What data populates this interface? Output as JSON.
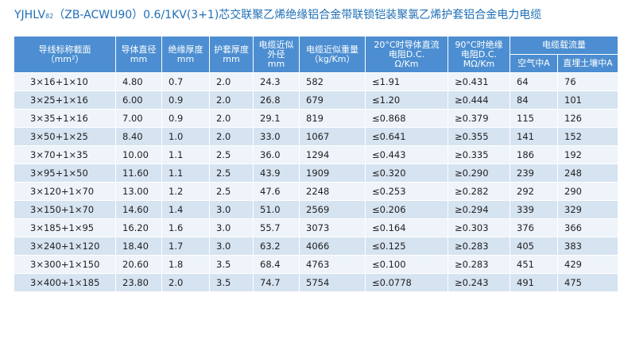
{
  "title": {
    "model": "YJHLV",
    "model_sub": "82",
    "rest": "（ZB-ACWU90）0.6/1KV(3+1)芯交联聚乙烯绝缘铝合金带联锁铠装聚氯乙烯护套铝合金电力电缆"
  },
  "headers": {
    "section": "导线标称截面\n（mm²）",
    "conductor_dia": "导体直径\nmm",
    "insulation": "绝缘厚度\nmm",
    "sheath": "护套厚度\nmm",
    "outer_dia": "电缆近似\n外径\nmm",
    "weight": "电缆近似重量\n（kg/Km）",
    "resistance_20": "20°C时导体直流\n电阻D.C.\nΩ/Km",
    "insulation_res_90": "90°C时绝缘\n电阻D.C.\nMΩ/Km",
    "ampacity": "电缆载流量",
    "ampacity_air": "空气中A",
    "ampacity_ground": "直埋土壤中A"
  },
  "rows": [
    [
      "3×16+1×10",
      "4.80",
      "0.7",
      "2.0",
      "24.3",
      "582",
      "≤1.91",
      "≥0.431",
      "64",
      "76"
    ],
    [
      "3×25+1×16",
      "6.00",
      "0.9",
      "2.0",
      "26.8",
      "679",
      "≤1.20",
      "≥0.444",
      "84",
      "101"
    ],
    [
      "3×35+1×16",
      "7.00",
      "0.9",
      "2.0",
      "29.1",
      "819",
      "≤0.868",
      "≥0.379",
      "115",
      "126"
    ],
    [
      "3×50+1×25",
      "8.40",
      "1.0",
      "2.0",
      "33.0",
      "1067",
      "≤0.641",
      "≥0.355",
      "141",
      "152"
    ],
    [
      "3×70+1×35",
      "10.00",
      "1.1",
      "2.5",
      "36.0",
      "1294",
      "≤0.443",
      "≥0.335",
      "186",
      "192"
    ],
    [
      "3×95+1×50",
      "11.60",
      "1.1",
      "2.5",
      "43.9",
      "1909",
      "≤0.320",
      "≥0.290",
      "239",
      "248"
    ],
    [
      "3×120+1×70",
      "13.00",
      "1.2",
      "2.5",
      "47.6",
      "2248",
      "≤0.253",
      "≥0.282",
      "292",
      "290"
    ],
    [
      "3×150+1×70",
      "14.60",
      "1.4",
      "3.0",
      "51.0",
      "2569",
      "≤0.206",
      "≥0.294",
      "339",
      "329"
    ],
    [
      "3×185+1×95",
      "16.20",
      "1.6",
      "3.0",
      "55.7",
      "3073",
      "≤0.164",
      "≥0.303",
      "376",
      "366"
    ],
    [
      "3×240+1×120",
      "18.40",
      "1.7",
      "3.0",
      "63.2",
      "4066",
      "≤0.125",
      "≥0.283",
      "405",
      "383"
    ],
    [
      "3×300+1×150",
      "20.60",
      "1.8",
      "3.5",
      "68.4",
      "4763",
      "≤0.100",
      "≥0.283",
      "451",
      "429"
    ],
    [
      "3×400+1×185",
      "23.80",
      "2.0",
      "3.5",
      "74.7",
      "5754",
      "≤0.0778",
      "≥0.243",
      "491",
      "475"
    ]
  ]
}
